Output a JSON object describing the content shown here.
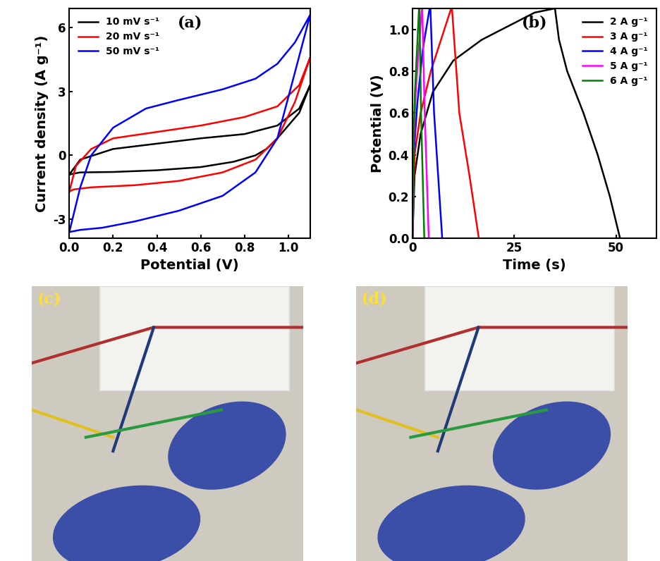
{
  "chart_data": [
    {
      "type": "line",
      "title": "(a)",
      "x_label": "Potential (V)",
      "y_label": "Current density (A g⁻¹)",
      "xlim": [
        0.0,
        1.1
      ],
      "xticks": [
        0.0,
        0.2,
        0.4,
        0.6,
        0.8,
        1.0
      ],
      "ylim": [
        -3.9,
        6.9
      ],
      "yticks": [
        -3,
        0,
        3,
        6
      ],
      "legend": "upper left",
      "series": [
        {
          "name": "10 mV s⁻¹",
          "color": "black",
          "x": [
            0.0,
            0.05,
            0.2,
            0.4,
            0.6,
            0.8,
            0.95,
            1.05,
            1.1,
            1.05,
            0.95,
            0.9,
            0.85,
            0.75,
            0.6,
            0.4,
            0.2,
            0.05,
            0.0
          ],
          "values": [
            -0.9,
            -0.2,
            0.3,
            0.55,
            0.8,
            1.0,
            1.4,
            2.2,
            3.3,
            2.0,
            0.8,
            0.3,
            0.0,
            -0.3,
            -0.55,
            -0.7,
            -0.78,
            -0.8,
            -0.9
          ]
        },
        {
          "name": "20 mV s⁻¹",
          "color": "red",
          "x": [
            0.0,
            0.03,
            0.1,
            0.2,
            0.4,
            0.6,
            0.8,
            0.95,
            1.05,
            1.1,
            1.03,
            0.95,
            0.85,
            0.7,
            0.5,
            0.3,
            0.1,
            0.02,
            0.0
          ],
          "values": [
            -1.7,
            -0.5,
            0.3,
            0.8,
            1.1,
            1.4,
            1.8,
            2.3,
            3.3,
            4.6,
            2.5,
            0.8,
            -0.2,
            -0.8,
            -1.2,
            -1.4,
            -1.5,
            -1.6,
            -1.7
          ]
        },
        {
          "name": "50 mV s⁻¹",
          "color": "blue",
          "x": [
            0.0,
            0.05,
            0.1,
            0.2,
            0.35,
            0.5,
            0.7,
            0.85,
            0.95,
            1.03,
            1.1,
            1.02,
            0.95,
            0.85,
            0.7,
            0.5,
            0.3,
            0.15,
            0.05,
            0.0
          ],
          "values": [
            -3.6,
            -1.5,
            0.0,
            1.3,
            2.2,
            2.6,
            3.1,
            3.6,
            4.3,
            5.3,
            6.6,
            3.5,
            0.8,
            -0.8,
            -1.9,
            -2.6,
            -3.1,
            -3.4,
            -3.5,
            -3.6
          ]
        }
      ]
    },
    {
      "type": "line",
      "title": "(b)",
      "x_label": "Time (s)",
      "y_label": "Potential (V)",
      "xlim": [
        0,
        60
      ],
      "xticks": [
        0,
        25,
        50
      ],
      "ylim": [
        0.0,
        1.1
      ],
      "yticks": [
        0.0,
        0.2,
        0.4,
        0.6,
        0.8,
        1.0
      ],
      "legend": "upper right",
      "series": [
        {
          "name": "2 A g⁻¹",
          "color": "black",
          "x": [
            0,
            0.5,
            2,
            5,
            10,
            17,
            25,
            30,
            35,
            36,
            38,
            42,
            45.5,
            48.5,
            51
          ],
          "values": [
            0.0,
            0.3,
            0.5,
            0.7,
            0.85,
            0.95,
            1.03,
            1.08,
            1.1,
            0.95,
            0.8,
            0.6,
            0.4,
            0.2,
            0.0
          ]
        },
        {
          "name": "3 A g⁻¹",
          "color": "red",
          "x": [
            0,
            0.5,
            2,
            4.5,
            7,
            9.5,
            9.7,
            11.5,
            14,
            16.3
          ],
          "values": [
            0.0,
            0.4,
            0.6,
            0.8,
            0.95,
            1.1,
            1.1,
            0.6,
            0.3,
            0.0
          ]
        },
        {
          "name": "4 A g⁻¹",
          "color": "blue",
          "x": [
            0,
            0.3,
            1.2,
            2.5,
            4.2,
            4.4,
            5.3,
            6.3,
            7.3
          ],
          "values": [
            0.0,
            0.4,
            0.65,
            0.9,
            1.1,
            1.1,
            0.6,
            0.3,
            0.0
          ]
        },
        {
          "name": "5 A g⁻¹",
          "color": "magenta",
          "x": [
            0,
            0.2,
            0.8,
            1.5,
            2.3,
            2.4,
            3.0,
            3.5,
            4.0
          ],
          "values": [
            0.0,
            0.4,
            0.7,
            0.9,
            1.1,
            1.1,
            0.6,
            0.3,
            0.0
          ]
        },
        {
          "name": "6 A g⁻¹",
          "color": "#008000",
          "x": [
            0,
            0.15,
            0.6,
            1.1,
            1.6,
            1.7,
            2.1,
            2.5,
            2.9
          ],
          "values": [
            0.0,
            0.4,
            0.7,
            0.9,
            1.1,
            1.1,
            0.6,
            0.3,
            0.0
          ]
        }
      ]
    }
  ],
  "images": [
    {
      "label": "(c)"
    },
    {
      "label": "(d)"
    }
  ]
}
